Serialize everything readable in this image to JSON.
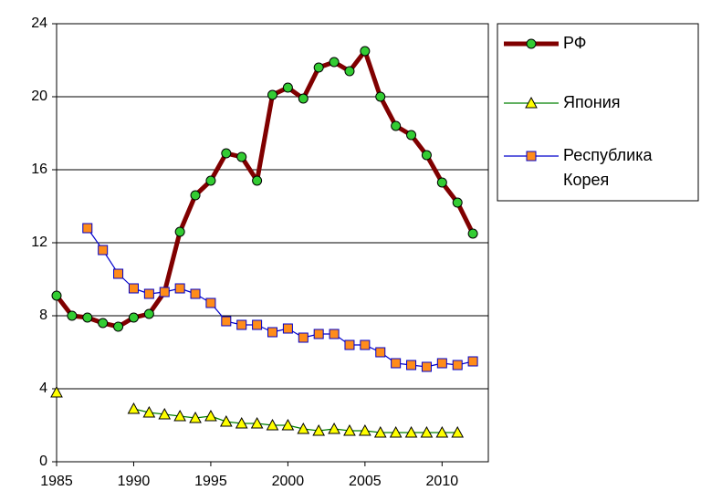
{
  "chart_data": {
    "type": "line",
    "x": [
      1985,
      1986,
      1987,
      1988,
      1989,
      1990,
      1991,
      1992,
      1993,
      1994,
      1995,
      1996,
      1997,
      1998,
      1999,
      2000,
      2001,
      2002,
      2003,
      2004,
      2005,
      2006,
      2007,
      2008,
      2009,
      2010,
      2011,
      2012
    ],
    "series": [
      {
        "name": "РФ",
        "color": "#800000",
        "marker": "circle",
        "marker_color": "#33cc33",
        "values": [
          9.1,
          8.0,
          7.9,
          7.6,
          7.4,
          7.9,
          8.1,
          9.3,
          12.6,
          14.6,
          15.4,
          16.9,
          16.7,
          15.4,
          20.1,
          20.5,
          19.9,
          21.6,
          21.9,
          21.4,
          22.5,
          20.0,
          18.4,
          17.9,
          16.8,
          15.3,
          14.2,
          12.5
        ]
      },
      {
        "name": "Япония",
        "color": "#008000",
        "marker": "triangle",
        "marker_color": "#ffff00",
        "values": [
          3.8,
          null,
          null,
          null,
          null,
          2.9,
          2.7,
          2.6,
          2.5,
          2.4,
          2.5,
          2.2,
          2.1,
          2.1,
          2.0,
          2.0,
          1.8,
          1.7,
          1.8,
          1.7,
          1.7,
          1.6,
          1.6,
          1.6,
          1.6,
          1.6,
          1.6,
          null
        ]
      },
      {
        "name": "Республика Корея",
        "color": "#0000cc",
        "marker": "square",
        "marker_color": "#ff8c1a",
        "values": [
          null,
          null,
          12.8,
          11.6,
          10.3,
          9.5,
          9.2,
          9.3,
          9.5,
          9.2,
          8.7,
          7.7,
          7.5,
          7.5,
          7.1,
          7.3,
          6.8,
          7.0,
          7.0,
          6.4,
          6.4,
          6.0,
          5.4,
          5.3,
          5.2,
          5.4,
          5.3,
          5.5
        ]
      }
    ],
    "xlim": [
      1985,
      2013
    ],
    "xticks": [
      1985,
      1990,
      1995,
      2000,
      2005,
      2010
    ],
    "ylim": [
      0,
      24
    ],
    "yticks": [
      0,
      4,
      8,
      12,
      16,
      20,
      24
    ],
    "grid": true,
    "legend": "right"
  }
}
